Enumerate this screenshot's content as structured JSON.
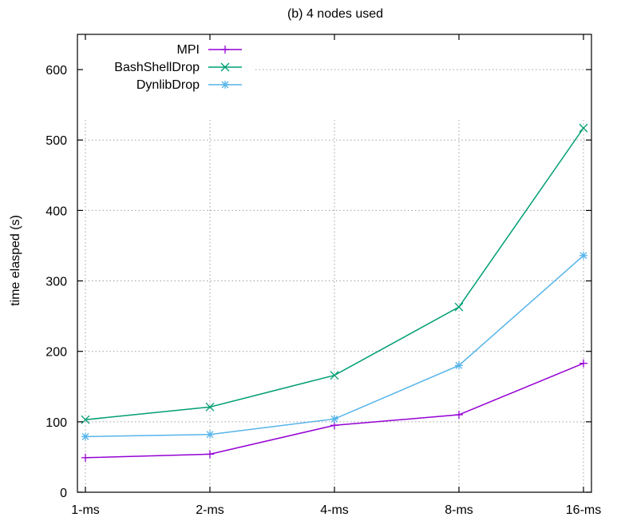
{
  "chart_data": {
    "type": "line",
    "title": "(b) 4 nodes used",
    "xlabel": "",
    "ylabel": "time elasped (s)",
    "categories": [
      "1-ms",
      "2-ms",
      "4-ms",
      "8-ms",
      "16-ms"
    ],
    "ylim": [
      0,
      650
    ],
    "yticks": [
      0,
      100,
      200,
      300,
      400,
      500,
      600
    ],
    "grid": true,
    "legend_position": "top-left",
    "series": [
      {
        "name": "MPI",
        "color": "#9400d3",
        "marker": "plus",
        "values": [
          49,
          54,
          95,
          110,
          183
        ]
      },
      {
        "name": "BashShellDrop",
        "color": "#009e73",
        "marker": "cross",
        "values": [
          103,
          121,
          166,
          263,
          517
        ]
      },
      {
        "name": "DynlibDrop",
        "color": "#56b4e9",
        "marker": "star",
        "values": [
          79,
          82,
          104,
          180,
          336
        ]
      }
    ]
  }
}
